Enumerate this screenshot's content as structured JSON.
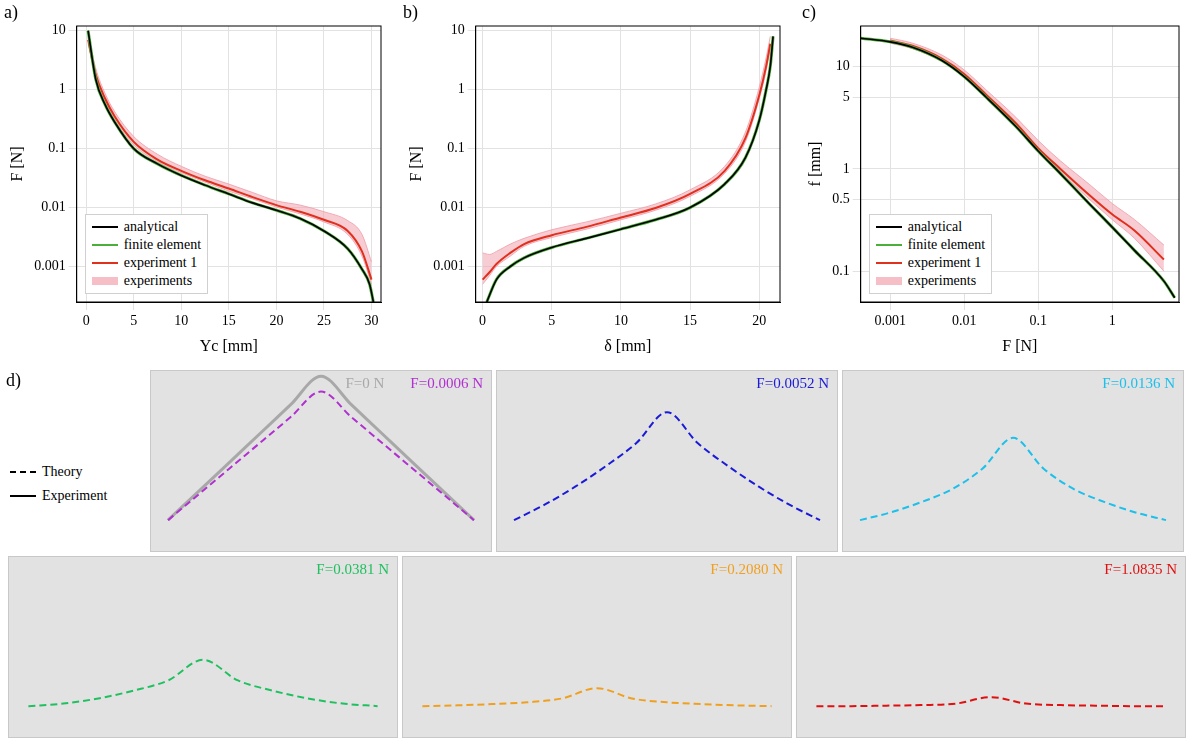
{
  "chart_data": [
    {
      "panel": "a)",
      "type": "line",
      "x_label": "Yc [mm]",
      "y_label": "F [N]",
      "xlim": [
        -1,
        31
      ],
      "xticks": [
        0,
        5,
        10,
        15,
        20,
        25,
        30
      ],
      "ylim": [
        0.00025,
        12
      ],
      "yticks": [
        0.001,
        0.01,
        0.1,
        1,
        10
      ],
      "log": "y",
      "grid": true,
      "legend": "lower left",
      "series": [
        {
          "name": "analytical",
          "color": "#000000",
          "x": [
            0.2,
            1,
            2,
            3,
            5,
            7.5,
            10,
            12.5,
            15,
            17.5,
            20,
            22.5,
            25,
            27.5,
            29,
            29.8,
            30.2
          ],
          "values": [
            10,
            1.5,
            0.55,
            0.28,
            0.1,
            0.055,
            0.035,
            0.024,
            0.017,
            0.012,
            0.009,
            0.0065,
            0.004,
            0.002,
            0.0009,
            0.0005,
            0.00025
          ]
        },
        {
          "name": "finite element",
          "color": "#4caf3a",
          "x": [
            0.2,
            1,
            2,
            3,
            5,
            7.5,
            10,
            12.5,
            15,
            17.5,
            20,
            22.5,
            25,
            27.5,
            29,
            29.8,
            30.2
          ],
          "values": [
            10,
            1.5,
            0.55,
            0.28,
            0.1,
            0.055,
            0.035,
            0.024,
            0.017,
            0.012,
            0.009,
            0.0065,
            0.004,
            0.002,
            0.0009,
            0.0005,
            0.00025
          ]
        },
        {
          "name": "experiment 1",
          "color": "#e0301e",
          "x": [
            0.2,
            1,
            2,
            3,
            5,
            7.5,
            10,
            12.5,
            15,
            17.5,
            20,
            22.5,
            25,
            27.5,
            29,
            30
          ],
          "values": [
            7,
            1.8,
            0.7,
            0.35,
            0.13,
            0.065,
            0.042,
            0.029,
            0.021,
            0.015,
            0.011,
            0.0085,
            0.0062,
            0.004,
            0.0018,
            0.0006
          ]
        },
        {
          "name": "experiments",
          "color": "#f2a3ae",
          "x": [
            0.2,
            1,
            2,
            3,
            5,
            7.5,
            10,
            12.5,
            15,
            17.5,
            20,
            22.5,
            25,
            27.5,
            29,
            30
          ],
          "lower": [
            6,
            1.6,
            0.62,
            0.31,
            0.115,
            0.06,
            0.039,
            0.027,
            0.019,
            0.014,
            0.0102,
            0.0078,
            0.0057,
            0.0035,
            0.0015,
            0.0005
          ],
          "upper": [
            9,
            2.3,
            0.85,
            0.42,
            0.16,
            0.08,
            0.05,
            0.034,
            0.025,
            0.018,
            0.013,
            0.011,
            0.0085,
            0.006,
            0.0035,
            0.0012
          ]
        }
      ]
    },
    {
      "panel": "b)",
      "type": "line",
      "x_label": "δ [mm]",
      "y_label": "F [N]",
      "xlim": [
        -0.5,
        21.5
      ],
      "xticks": [
        0,
        5,
        10,
        15,
        20
      ],
      "ylim": [
        0.00025,
        12
      ],
      "yticks": [
        0.001,
        0.01,
        0.1,
        1,
        10
      ],
      "log": "y",
      "grid": true,
      "series": [
        {
          "color": "#000000",
          "x": [
            0.3,
            1,
            2,
            3,
            5,
            7.5,
            10,
            12.5,
            15,
            17.5,
            19,
            20,
            20.5,
            20.8,
            21
          ],
          "values": [
            0.00025,
            0.0006,
            0.001,
            0.0014,
            0.0021,
            0.003,
            0.0043,
            0.0062,
            0.01,
            0.025,
            0.07,
            0.3,
            1,
            2.5,
            8
          ]
        },
        {
          "color": "#4caf3a",
          "x": [
            0.3,
            1,
            2,
            3,
            5,
            7.5,
            10,
            12.5,
            15,
            17.5,
            19,
            20,
            20.5,
            20.8,
            21
          ],
          "values": [
            0.00025,
            0.0006,
            0.001,
            0.0014,
            0.0021,
            0.003,
            0.0043,
            0.0062,
            0.01,
            0.025,
            0.07,
            0.3,
            1,
            2.5,
            8
          ]
        },
        {
          "color": "#e0301e",
          "x": [
            0,
            0.5,
            1,
            2,
            3,
            5,
            7.5,
            10,
            12.5,
            15,
            17.5,
            19,
            20,
            20.5,
            20.8
          ],
          "values": [
            0.0006,
            0.0008,
            0.0011,
            0.0017,
            0.0024,
            0.0034,
            0.0047,
            0.0068,
            0.0098,
            0.017,
            0.042,
            0.15,
            0.8,
            2.5,
            6
          ]
        },
        {
          "color": "#f2a3ae",
          "x": [
            0,
            0.5,
            1,
            2,
            3,
            5,
            7.5,
            10,
            12.5,
            15,
            17.5,
            19,
            20,
            20.5,
            20.8
          ],
          "lower": [
            0.0005,
            0.0007,
            0.001,
            0.0015,
            0.0022,
            0.0031,
            0.0043,
            0.0062,
            0.009,
            0.0155,
            0.038,
            0.13,
            0.7,
            2.1,
            5
          ],
          "upper": [
            0.0017,
            0.0016,
            0.0018,
            0.0024,
            0.003,
            0.0042,
            0.0057,
            0.008,
            0.0115,
            0.02,
            0.05,
            0.19,
            1.1,
            3.5,
            8
          ]
        }
      ]
    },
    {
      "panel": "c)",
      "type": "line",
      "x_label": "F [N]",
      "y_label": "f [mm]",
      "xlim": [
        0.0004,
        8
      ],
      "xticks": [
        0.001,
        0.01,
        0.1,
        1
      ],
      "ylim": [
        0.05,
        25
      ],
      "yticks": [
        0.1,
        0.5,
        1,
        5,
        10
      ],
      "log": true,
      "grid": true,
      "legend": "lower left",
      "series": [
        {
          "name": "analytical",
          "color": "#000000",
          "x": [
            0.0004,
            0.001,
            0.002,
            0.005,
            0.01,
            0.02,
            0.05,
            0.1,
            0.2,
            0.5,
            1,
            2,
            5,
            7
          ],
          "values": [
            19,
            17.5,
            15.5,
            11.5,
            8,
            5,
            2.6,
            1.5,
            0.9,
            0.45,
            0.27,
            0.16,
            0.08,
            0.055
          ]
        },
        {
          "name": "finite element",
          "color": "#4caf3a",
          "x": [
            0.0004,
            0.001,
            0.002,
            0.005,
            0.01,
            0.02,
            0.05,
            0.1,
            0.2,
            0.5,
            1,
            2,
            5,
            7
          ],
          "values": [
            19,
            17.5,
            15.5,
            11.5,
            8,
            5,
            2.6,
            1.5,
            0.9,
            0.45,
            0.27,
            0.16,
            0.08,
            0.055
          ]
        },
        {
          "name": "experiment 1",
          "color": "#e0301e",
          "x": [
            0.001,
            0.002,
            0.005,
            0.01,
            0.02,
            0.05,
            0.1,
            0.2,
            0.5,
            1,
            2,
            5
          ],
          "values": [
            18,
            16,
            12,
            8.5,
            5.3,
            2.8,
            1.6,
            1.0,
            0.55,
            0.36,
            0.25,
            0.13
          ]
        },
        {
          "name": "experiments",
          "color": "#f2a3ae",
          "x": [
            0.001,
            0.002,
            0.005,
            0.01,
            0.02,
            0.05,
            0.1,
            0.2,
            0.5,
            1,
            2,
            5
          ],
          "lower": [
            17,
            15,
            11.3,
            8,
            5,
            2.6,
            1.5,
            0.93,
            0.5,
            0.32,
            0.21,
            0.1
          ],
          "upper": [
            19,
            17,
            13,
            9.3,
            5.9,
            3.2,
            1.9,
            1.2,
            0.7,
            0.46,
            0.32,
            0.18
          ]
        }
      ]
    }
  ],
  "figure_d": {
    "panel": "d)",
    "legend_items": [
      {
        "label": "Theory",
        "line_style": "dashed"
      },
      {
        "label": "Experiment",
        "line_style": "solid"
      }
    ],
    "xlim": [
      0,
      1
    ],
    "ylim": [
      0,
      0.7
    ],
    "tick_labels": false,
    "x": [
      0.05,
      0.14,
      0.23,
      0.32,
      0.41,
      0.5,
      0.59,
      0.68,
      0.77,
      0.86,
      0.95
    ],
    "photos": [
      {
        "curves": [
          {
            "label": "F=0 N",
            "color": "#a8a8a8",
            "line_style": "solid",
            "y": [
              0.12,
              0.232,
              0.344,
              0.456,
              0.568,
              0.68,
              0.568,
              0.456,
              0.344,
              0.232,
              0.12
            ]
          },
          {
            "label": "F=0.0006 N",
            "color": "#b030d0",
            "line_style": "dashed",
            "y": [
              0.12,
              0.22,
              0.32,
              0.42,
              0.52,
              0.62,
              0.52,
              0.42,
              0.32,
              0.22,
              0.12
            ]
          }
        ]
      },
      {
        "curves": [
          {
            "label": "F=0.0052 N",
            "color": "#1a1ad8",
            "line_style": "dashed",
            "y": [
              0.12,
              0.18,
              0.25,
              0.33,
              0.42,
              0.54,
              0.42,
              0.33,
              0.25,
              0.18,
              0.12
            ]
          }
        ]
      },
      {
        "curves": [
          {
            "label": "F=0.0136 N",
            "color": "#1cc0ea",
            "line_style": "dashed",
            "y": [
              0.12,
              0.15,
              0.19,
              0.24,
              0.32,
              0.44,
              0.32,
              0.24,
              0.19,
              0.15,
              0.12
            ]
          }
        ]
      },
      {
        "curves": [
          {
            "label": "F=0.0381 N",
            "color": "#20c060",
            "line_style": "dashed",
            "y": [
              0.12,
              0.13,
              0.15,
              0.18,
              0.22,
              0.3,
              0.22,
              0.18,
              0.15,
              0.13,
              0.12
            ]
          }
        ]
      },
      {
        "curves": [
          {
            "label": "F=0.2080 N",
            "color": "#f0a020",
            "line_style": "dashed",
            "y": [
              0.12,
              0.123,
              0.128,
              0.135,
              0.15,
              0.19,
              0.15,
              0.135,
              0.128,
              0.123,
              0.12
            ]
          }
        ]
      },
      {
        "curves": [
          {
            "label": "F=1.0835 N",
            "color": "#e01010",
            "line_style": "dashed",
            "y": [
              0.12,
              0.12,
              0.122,
              0.124,
              0.13,
              0.155,
              0.13,
              0.124,
              0.122,
              0.12,
              0.12
            ]
          }
        ]
      }
    ]
  }
}
